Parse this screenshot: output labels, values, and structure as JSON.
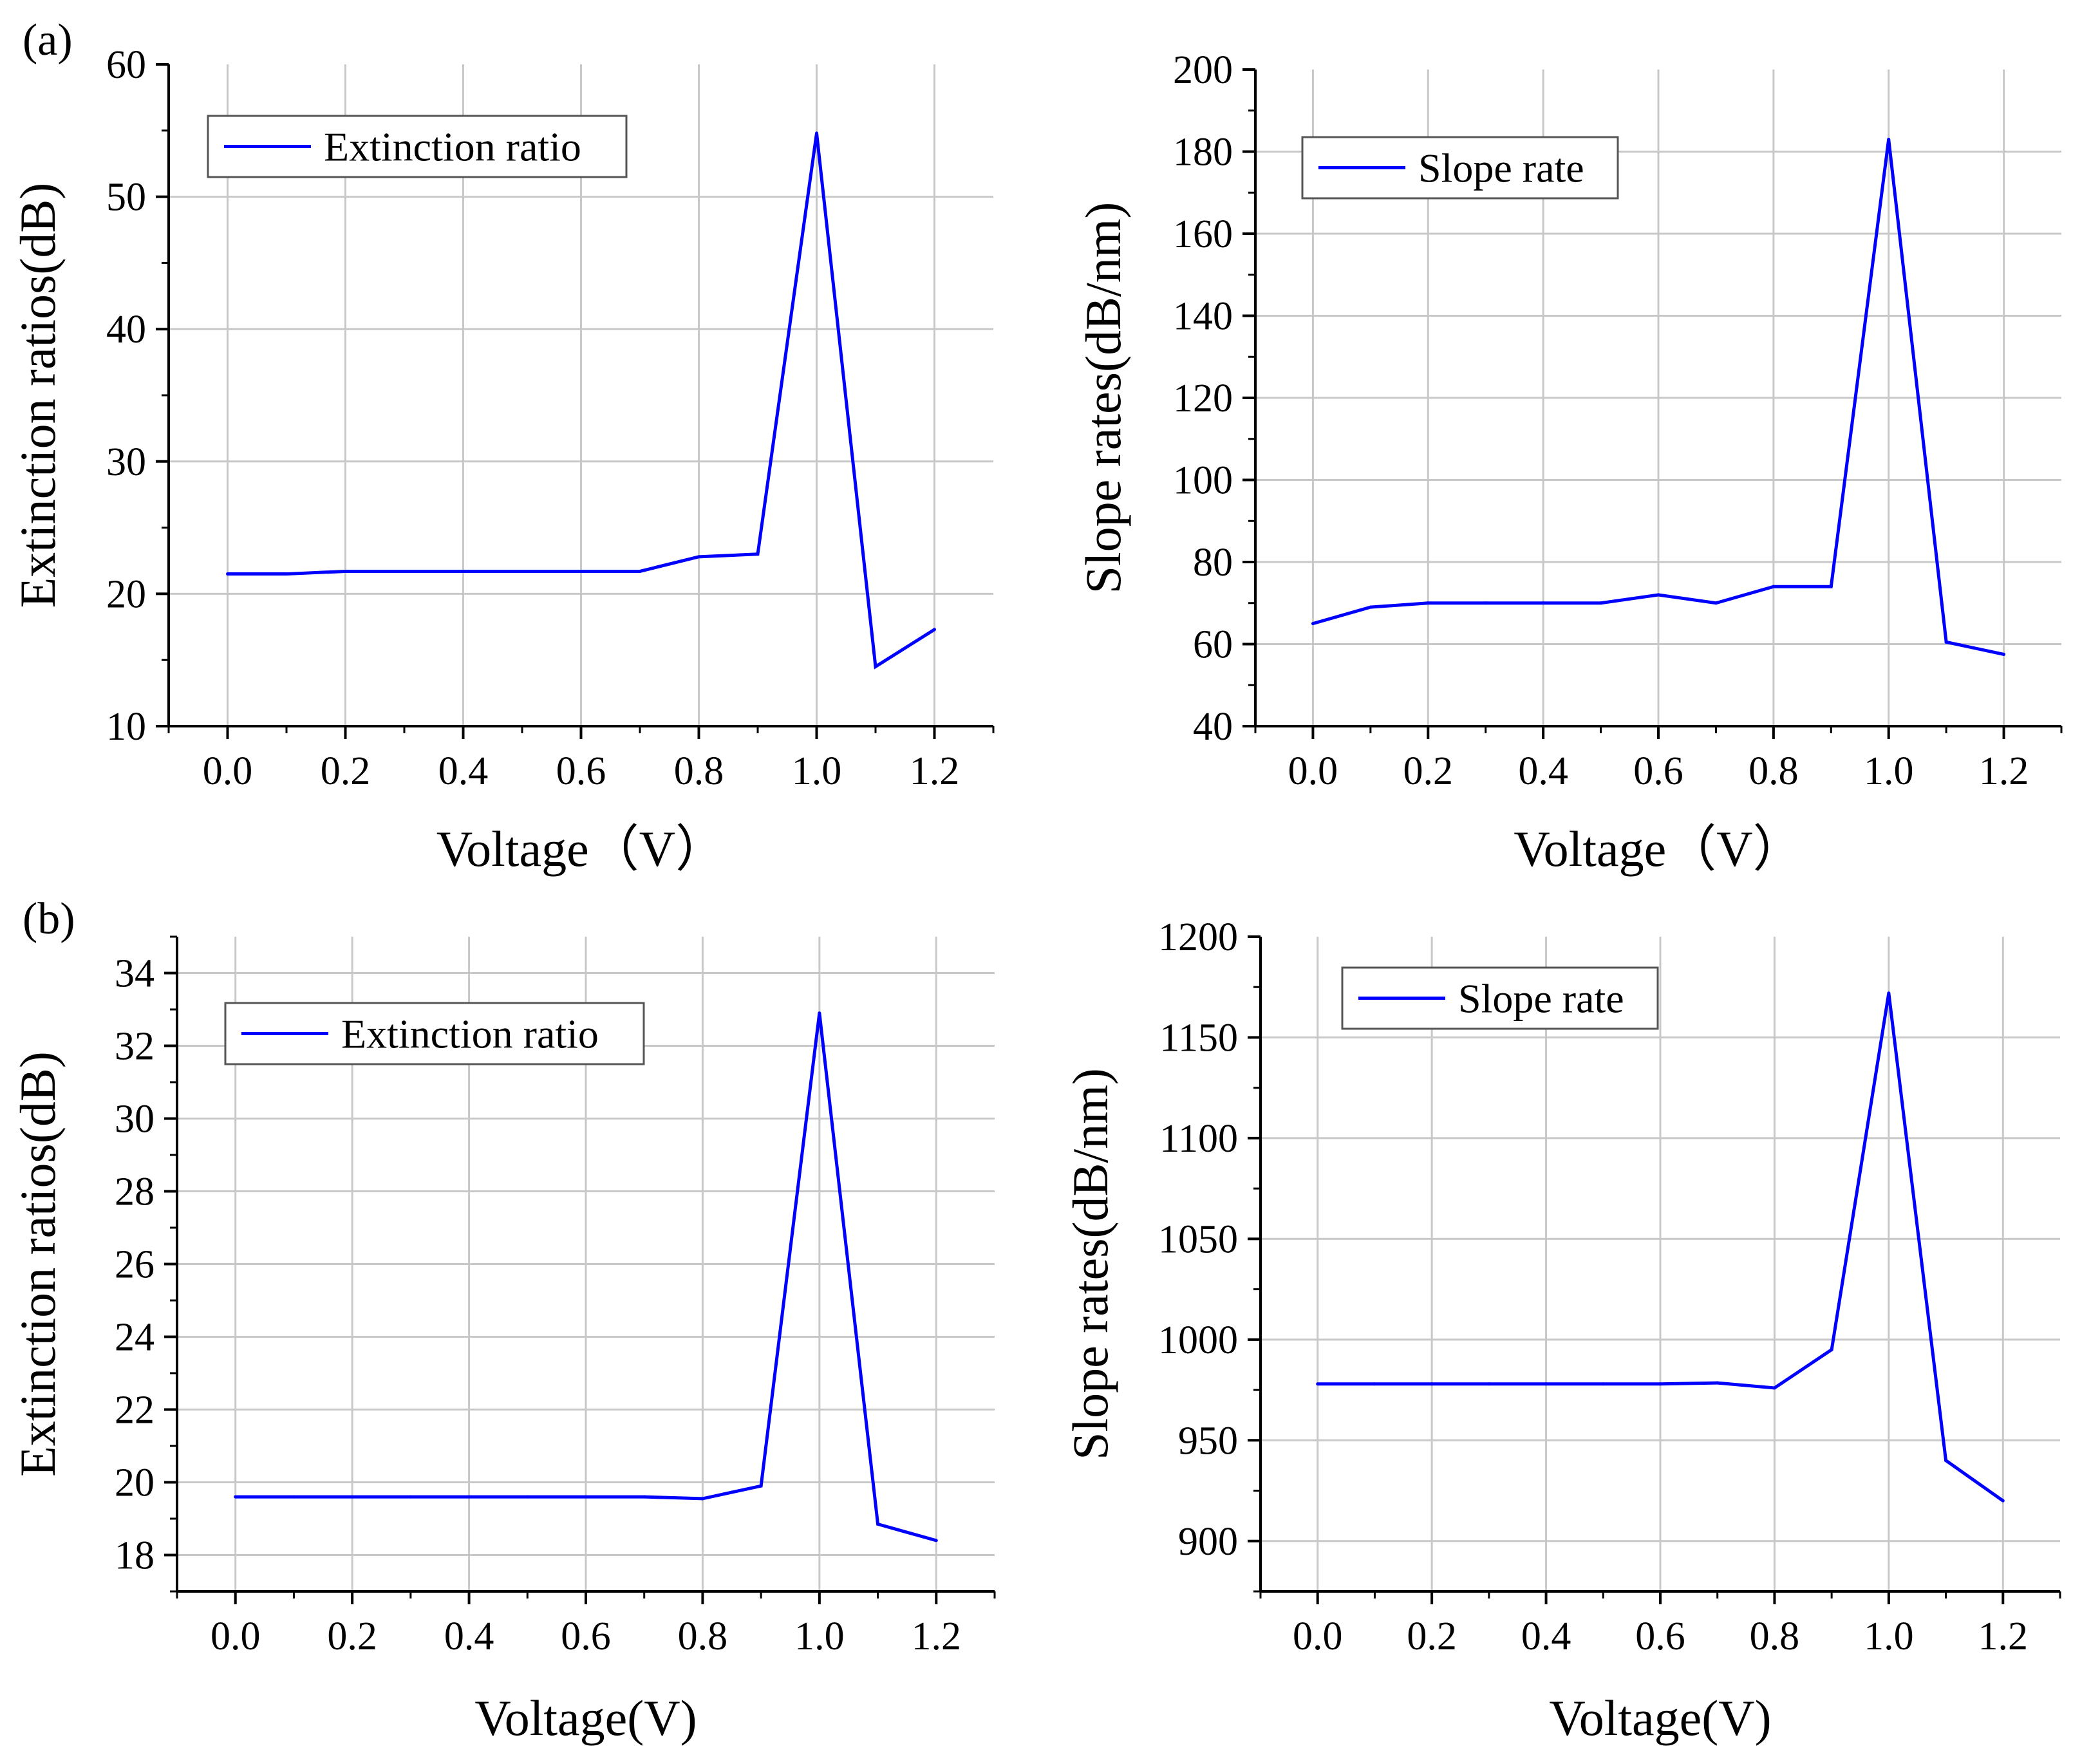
{
  "figure": {
    "panel_labels": [
      "(a)",
      "(b)"
    ],
    "line_color": "#0000ff",
    "grid_color": "#c8c8c8"
  },
  "chart_data": [
    {
      "id": "a-left",
      "type": "line",
      "xlabel": "Voltage（V）",
      "ylabel": "Extinction ratios(dB)",
      "xlim": [
        -0.1,
        1.3
      ],
      "ylim": [
        10,
        60
      ],
      "xticks": [
        0.0,
        0.2,
        0.4,
        0.6,
        0.8,
        1.0,
        1.2
      ],
      "xtick_labels": [
        "0.0",
        "0.2",
        "0.4",
        "0.6",
        "0.8",
        "1.0",
        "1.2"
      ],
      "yticks": [
        10,
        20,
        30,
        40,
        50,
        60
      ],
      "ytick_labels": [
        "10",
        "20",
        "30",
        "40",
        "50",
        "60"
      ],
      "y_minor_step": 5,
      "legend": "top-left",
      "series": [
        {
          "name": "Extinction ratio",
          "x": [
            0.0,
            0.1,
            0.2,
            0.3,
            0.4,
            0.5,
            0.6,
            0.7,
            0.8,
            0.9,
            1.0,
            1.1,
            1.2
          ],
          "y": [
            21.5,
            21.5,
            21.7,
            21.7,
            21.7,
            21.7,
            21.7,
            21.7,
            22.8,
            23.0,
            54.8,
            14.5,
            17.3
          ]
        }
      ]
    },
    {
      "id": "a-right",
      "type": "line",
      "xlabel": "Voltage（V）",
      "ylabel": "Slope rates(dB/nm)",
      "xlim": [
        -0.1,
        1.3
      ],
      "ylim": [
        40,
        200
      ],
      "xticks": [
        0.0,
        0.2,
        0.4,
        0.6,
        0.8,
        1.0,
        1.2
      ],
      "xtick_labels": [
        "0.0",
        "0.2",
        "0.4",
        "0.6",
        "0.8",
        "1.0",
        "1.2"
      ],
      "yticks": [
        40,
        60,
        80,
        100,
        120,
        140,
        160,
        180,
        200
      ],
      "ytick_labels": [
        "40",
        "60",
        "80",
        "100",
        "120",
        "140",
        "160",
        "180",
        "200"
      ],
      "y_minor_step": 10,
      "legend": "top-left",
      "series": [
        {
          "name": "Slope rate",
          "x": [
            0.0,
            0.1,
            0.2,
            0.3,
            0.4,
            0.5,
            0.6,
            0.7,
            0.8,
            0.9,
            1.0,
            1.1,
            1.2
          ],
          "y": [
            65,
            69,
            70,
            70,
            70,
            70,
            72,
            70,
            74,
            74,
            183,
            60.5,
            57.5
          ]
        }
      ]
    },
    {
      "id": "b-left",
      "type": "line",
      "xlabel": "Voltage(V)",
      "ylabel": "Extinction ratios(dB)",
      "xlim": [
        -0.1,
        1.3
      ],
      "ylim": [
        17,
        35
      ],
      "xticks": [
        0.0,
        0.2,
        0.4,
        0.6,
        0.8,
        1.0,
        1.2
      ],
      "xtick_labels": [
        "0.0",
        "0.2",
        "0.4",
        "0.6",
        "0.8",
        "1.0",
        "1.2"
      ],
      "yticks": [
        18,
        20,
        22,
        24,
        26,
        28,
        30,
        32,
        34
      ],
      "ytick_labels": [
        "18",
        "20",
        "22",
        "24",
        "26",
        "28",
        "30",
        "32",
        "34"
      ],
      "y_minor_step": 1,
      "legend": "top-left",
      "series": [
        {
          "name": "Extinction ratio",
          "x": [
            0.0,
            0.1,
            0.2,
            0.3,
            0.4,
            0.5,
            0.6,
            0.7,
            0.8,
            0.9,
            1.0,
            1.1,
            1.2
          ],
          "y": [
            19.6,
            19.6,
            19.6,
            19.6,
            19.6,
            19.6,
            19.6,
            19.6,
            19.55,
            19.9,
            32.9,
            18.85,
            18.4
          ]
        }
      ]
    },
    {
      "id": "b-right",
      "type": "line",
      "xlabel": "Voltage(V)",
      "ylabel": "Slope rates(dB/nm)",
      "xlim": [
        -0.1,
        1.3
      ],
      "ylim": [
        875,
        1200
      ],
      "xticks": [
        0.0,
        0.2,
        0.4,
        0.6,
        0.8,
        1.0,
        1.2
      ],
      "xtick_labels": [
        "0.0",
        "0.2",
        "0.4",
        "0.6",
        "0.8",
        "1.0",
        "1.2"
      ],
      "yticks": [
        900,
        950,
        1000,
        1050,
        1100,
        1150,
        1200
      ],
      "ytick_labels": [
        "900",
        "950",
        "1000",
        "1050",
        "1100",
        "1150",
        "1200"
      ],
      "y_minor_step": 25,
      "legend": "top-left",
      "series": [
        {
          "name": "Slope rate",
          "x": [
            0.0,
            0.1,
            0.2,
            0.3,
            0.4,
            0.5,
            0.6,
            0.7,
            0.8,
            0.9,
            1.0,
            1.1,
            1.2
          ],
          "y": [
            978,
            978,
            978,
            978,
            978,
            978,
            978,
            978.5,
            976,
            995,
            1172,
            940,
            920
          ]
        }
      ]
    }
  ]
}
